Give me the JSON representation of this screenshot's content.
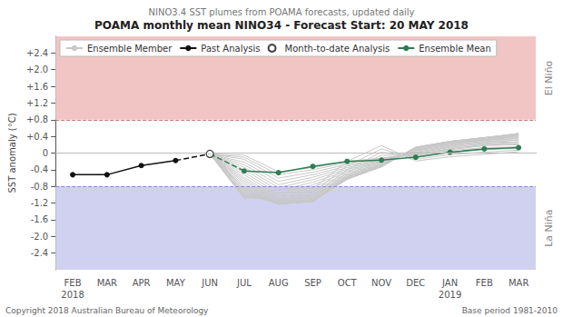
{
  "chart_data": {
    "type": "line",
    "title": "POAMA monthly mean NINO34 - Forecast Start: 20 MAY 2018",
    "subtitle": "NINO3.4 SST plumes from POAMA forecasts, updated daily",
    "ylabel": "SST anomaly (°C)",
    "categories": [
      "FEB",
      "MAR",
      "APR",
      "MAY",
      "JUN",
      "JUL",
      "AUG",
      "SEP",
      "OCT",
      "NOV",
      "DEC",
      "JAN",
      "FEB",
      "MAR"
    ],
    "ylim": [
      -2.8,
      2.8
    ],
    "yticks": [
      -2.4,
      {
        "value": -2.0,
        "label": "-2.0"
      },
      -1.6,
      -1.2,
      -0.8,
      -0.4,
      0,
      {
        "value": 0.4,
        "label": "+0.4"
      },
      {
        "value": 0.8,
        "label": "+0.8"
      },
      {
        "value": 1.2,
        "label": "+1.2"
      },
      {
        "value": 1.6,
        "label": "+1.6"
      },
      {
        "value": 2.0,
        "label": "+2.0"
      },
      {
        "value": 2.4,
        "label": "+2.4"
      }
    ],
    "grid": false,
    "legend": "upper left",
    "bands": [
      {
        "from": 0.8,
        "to": 2.8,
        "color": "#f2c5c5",
        "label": "El Niño",
        "label_color": "#888888"
      },
      {
        "from": -2.8,
        "to": -0.8,
        "color": "#d0d0f0",
        "label": "La Niña",
        "label_color": "#888888"
      }
    ],
    "hlines": [
      {
        "y": 0.8,
        "color": "#cc7777",
        "line_style": "dashed"
      },
      {
        "y": -0.8,
        "color": "#8888cc",
        "line_style": "dashed"
      },
      {
        "y": 0,
        "color": "#bbbbbb",
        "line_style": "solid"
      }
    ],
    "annotations": [
      {
        "text": "2018",
        "x": 0
      },
      {
        "text": "2019",
        "x": 11
      }
    ],
    "footnotes": [
      "Copyright 2018 Australian Bureau of Meteorology",
      "Base period 1981-2010"
    ],
    "series": [
      {
        "name": "Ensemble Member",
        "color": "#c8c8c8",
        "marker": "none",
        "line_style": "solid",
        "values": [
          null,
          null,
          null,
          null,
          -0.02,
          -0.05,
          -0.45,
          -0.35,
          -0.2,
          -0.12,
          -0.05,
          0.08,
          0.18,
          0.22
        ]
      },
      {
        "name": "Ensemble Member",
        "color": "#c8c8c8",
        "marker": "none",
        "line_style": "solid",
        "values": [
          null,
          null,
          null,
          null,
          -0.02,
          -0.1,
          -0.52,
          -0.4,
          -0.23,
          -0.14,
          -0.03,
          0.1,
          0.2,
          0.27
        ]
      },
      {
        "name": "Ensemble Member",
        "color": "#c8c8c8",
        "marker": "none",
        "line_style": "solid",
        "values": [
          null,
          null,
          null,
          null,
          -0.02,
          -0.15,
          -0.6,
          -0.46,
          -0.27,
          -0.16,
          0.0,
          0.13,
          0.23,
          0.32
        ]
      },
      {
        "name": "Ensemble Member",
        "color": "#c8c8c8",
        "marker": "none",
        "line_style": "solid",
        "values": [
          null,
          null,
          null,
          null,
          -0.02,
          -0.22,
          -0.68,
          -0.52,
          -0.31,
          -0.18,
          0.02,
          0.16,
          0.26,
          0.37
        ]
      },
      {
        "name": "Ensemble Member",
        "color": "#c8c8c8",
        "marker": "none",
        "line_style": "solid",
        "values": [
          null,
          null,
          null,
          null,
          -0.02,
          -0.28,
          -0.76,
          -0.58,
          -0.35,
          -0.2,
          0.05,
          0.19,
          0.29,
          0.41
        ]
      },
      {
        "name": "Ensemble Member",
        "color": "#c8c8c8",
        "marker": "none",
        "line_style": "solid",
        "values": [
          null,
          null,
          null,
          null,
          -0.02,
          -0.34,
          -0.83,
          -0.64,
          -0.39,
          -0.22,
          0.07,
          0.21,
          0.31,
          0.44
        ]
      },
      {
        "name": "Ensemble Member",
        "color": "#c8c8c8",
        "marker": "none",
        "line_style": "solid",
        "values": [
          null,
          null,
          null,
          null,
          -0.02,
          -0.4,
          -0.9,
          -0.7,
          -0.43,
          -0.24,
          0.09,
          0.23,
          0.33,
          0.46
        ]
      },
      {
        "name": "Ensemble Member",
        "color": "#c8c8c8",
        "marker": "none",
        "line_style": "solid",
        "values": [
          null,
          null,
          null,
          null,
          -0.02,
          -0.46,
          -0.97,
          -0.76,
          -0.47,
          -0.27,
          0.11,
          0.25,
          0.35,
          0.47
        ]
      },
      {
        "name": "Ensemble Member",
        "color": "#c8c8c8",
        "marker": "none",
        "line_style": "solid",
        "values": [
          null,
          null,
          null,
          null,
          -0.02,
          -0.52,
          -1.03,
          -0.82,
          -0.51,
          -0.29,
          0.12,
          0.26,
          0.36,
          0.47
        ]
      },
      {
        "name": "Ensemble Member",
        "color": "#c8c8c8",
        "marker": "none",
        "line_style": "solid",
        "values": [
          null,
          null,
          null,
          null,
          -0.02,
          -0.58,
          -1.08,
          -0.88,
          -0.54,
          -0.31,
          0.13,
          0.27,
          0.37,
          0.47
        ]
      },
      {
        "name": "Ensemble Member",
        "color": "#c8c8c8",
        "marker": "none",
        "line_style": "solid",
        "values": [
          null,
          null,
          null,
          null,
          -0.02,
          -0.63,
          -1.12,
          -0.93,
          -0.57,
          -0.32,
          0.13,
          0.28,
          0.37,
          0.46
        ]
      },
      {
        "name": "Ensemble Member",
        "color": "#c8c8c8",
        "marker": "none",
        "line_style": "solid",
        "values": [
          null,
          null,
          null,
          null,
          -0.02,
          -0.68,
          -1.15,
          -0.98,
          -0.59,
          -0.33,
          0.14,
          0.28,
          0.37,
          0.45
        ]
      },
      {
        "name": "Ensemble Member",
        "color": "#c8c8c8",
        "marker": "none",
        "line_style": "solid",
        "values": [
          null,
          null,
          null,
          null,
          -0.02,
          -0.73,
          -1.18,
          -1.02,
          -0.61,
          -0.33,
          0.14,
          0.28,
          0.37,
          0.43
        ]
      },
      {
        "name": "Ensemble Member",
        "color": "#c8c8c8",
        "marker": "none",
        "line_style": "solid",
        "values": [
          null,
          null,
          null,
          null,
          -0.02,
          -0.78,
          -1.2,
          -1.06,
          -0.62,
          -0.33,
          0.14,
          0.28,
          0.36,
          0.41
        ]
      },
      {
        "name": "Ensemble Member",
        "color": "#c8c8c8",
        "marker": "none",
        "line_style": "solid",
        "values": [
          null,
          null,
          null,
          null,
          -0.02,
          -0.83,
          -1.22,
          -1.1,
          -0.63,
          -0.33,
          0.13,
          0.27,
          0.35,
          0.39
        ]
      },
      {
        "name": "Ensemble Member",
        "color": "#c8c8c8",
        "marker": "none",
        "line_style": "solid",
        "values": [
          null,
          null,
          null,
          null,
          -0.02,
          -0.87,
          -1.23,
          -1.13,
          -0.63,
          -0.32,
          0.12,
          0.26,
          0.33,
          0.37
        ]
      },
      {
        "name": "Ensemble Member",
        "color": "#c8c8c8",
        "marker": "none",
        "line_style": "solid",
        "values": [
          null,
          null,
          null,
          null,
          -0.02,
          -0.91,
          -1.23,
          -1.15,
          -0.63,
          -0.3,
          0.1,
          0.24,
          0.31,
          0.34
        ]
      },
      {
        "name": "Ensemble Member",
        "color": "#c8c8c8",
        "marker": "none",
        "line_style": "solid",
        "values": [
          null,
          null,
          null,
          null,
          -0.02,
          -0.95,
          -1.22,
          -1.17,
          -0.62,
          -0.27,
          0.08,
          0.21,
          0.28,
          0.31
        ]
      },
      {
        "name": "Ensemble Member",
        "color": "#c8c8c8",
        "marker": "none",
        "line_style": "solid",
        "values": [
          null,
          null,
          null,
          null,
          -0.02,
          -0.99,
          -1.2,
          -1.17,
          -0.6,
          -0.23,
          0.05,
          0.18,
          0.25,
          0.27
        ]
      },
      {
        "name": "Ensemble Member",
        "color": "#c8c8c8",
        "marker": "none",
        "line_style": "solid",
        "values": [
          null,
          null,
          null,
          null,
          -0.02,
          -1.02,
          -1.17,
          -1.16,
          -0.57,
          -0.18,
          0.02,
          0.14,
          0.22,
          0.23
        ]
      },
      {
        "name": "Ensemble Member",
        "color": "#c8c8c8",
        "marker": "none",
        "line_style": "solid",
        "values": [
          null,
          null,
          null,
          null,
          -0.02,
          -1.05,
          -1.13,
          -1.13,
          -0.53,
          -0.12,
          -0.02,
          0.1,
          0.18,
          0.2
        ]
      },
      {
        "name": "Ensemble Member",
        "color": "#c8c8c8",
        "marker": "none",
        "line_style": "solid",
        "values": [
          null,
          null,
          null,
          null,
          -0.02,
          -1.07,
          -1.08,
          -1.09,
          -0.47,
          -0.05,
          -0.06,
          0.06,
          0.13,
          0.15
        ]
      },
      {
        "name": "Ensemble Member",
        "color": "#c8c8c8",
        "marker": "none",
        "line_style": "solid",
        "values": [
          null,
          null,
          null,
          null,
          -0.02,
          -1.08,
          -1.02,
          -1.03,
          -0.4,
          0.02,
          -0.11,
          0.01,
          0.08,
          0.11
        ]
      },
      {
        "name": "Ensemble Member",
        "color": "#c8c8c8",
        "marker": "none",
        "line_style": "solid",
        "values": [
          null,
          null,
          null,
          null,
          -0.02,
          -1.08,
          -0.95,
          -0.95,
          -0.31,
          0.1,
          -0.15,
          -0.04,
          0.02,
          0.07
        ]
      },
      {
        "name": "Ensemble Member",
        "color": "#c8c8c8",
        "marker": "none",
        "line_style": "solid",
        "values": [
          null,
          null,
          null,
          null,
          -0.02,
          -1.07,
          -0.87,
          -0.85,
          -0.2,
          0.18,
          -0.19,
          -0.09,
          -0.03,
          0.03
        ]
      },
      {
        "name": "Past Analysis",
        "color": "#111111",
        "marker": "circle",
        "line_style": "solid",
        "values": [
          -0.52,
          -0.52,
          -0.3,
          -0.18,
          null,
          null,
          null,
          null,
          null,
          null,
          null,
          null,
          null,
          null
        ]
      },
      {
        "color": "#111111",
        "marker": "none",
        "line_style": "dashed",
        "values": [
          null,
          null,
          null,
          -0.18,
          -0.02,
          null,
          null,
          null,
          null,
          null,
          null,
          null,
          null,
          null
        ]
      },
      {
        "name": "Month-to-date Analysis",
        "type": "scatter",
        "color": "#111111",
        "marker": "open_circle",
        "values": [
          null,
          null,
          null,
          null,
          -0.02,
          null,
          null,
          null,
          null,
          null,
          null,
          null,
          null,
          null
        ]
      },
      {
        "color": "#2e7d52",
        "marker": "none",
        "line_style": "dashed",
        "values": [
          null,
          null,
          null,
          null,
          -0.02,
          -0.43,
          null,
          null,
          null,
          null,
          null,
          null,
          null,
          null
        ]
      },
      {
        "name": "Ensemble Mean",
        "color": "#2e7d52",
        "marker": "circle",
        "line_style": "solid",
        "values": [
          null,
          null,
          null,
          null,
          null,
          -0.43,
          -0.47,
          -0.32,
          -0.2,
          -0.17,
          -0.1,
          0.02,
          0.1,
          0.13
        ]
      }
    ]
  }
}
